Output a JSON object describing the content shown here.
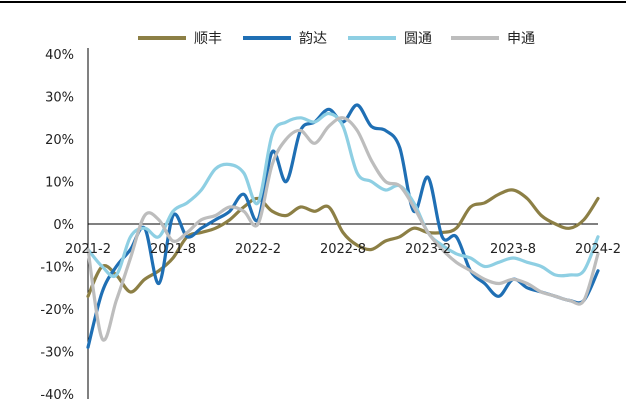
{
  "chart_data": {
    "type": "line",
    "title": "",
    "xlabel": "",
    "ylabel": "",
    "ylim": [
      -40,
      40
    ],
    "yticks": [
      40,
      30,
      20,
      10,
      0,
      -10,
      -20,
      -30,
      -40
    ],
    "ytick_labels": [
      "40%",
      "30%",
      "20%",
      "10%",
      "0%",
      "-10%",
      "-20%",
      "-30%",
      "-40%"
    ],
    "xlim": [
      "2021-02",
      "2024-02"
    ],
    "xticks": [
      "2021-02",
      "2021-08",
      "2022-02",
      "2022-08",
      "2023-02",
      "2023-08",
      "2024-02"
    ],
    "xtick_labels": [
      "2021-2",
      "2021-8",
      "2022-2",
      "2022-8",
      "2023-2",
      "2023-8",
      "2024-2"
    ],
    "grid": false,
    "legend_position": "top",
    "series": [
      {
        "name": "顺丰",
        "color": "#8C7F45",
        "points": [
          [
            "2021-02",
            -17
          ],
          [
            "2021-03",
            -10
          ],
          [
            "2021-04",
            -12
          ],
          [
            "2021-05",
            -16
          ],
          [
            "2021-06",
            -13
          ],
          [
            "2021-07",
            -11
          ],
          [
            "2021-08",
            -8
          ],
          [
            "2021-09",
            -3
          ],
          [
            "2021-10",
            -2
          ],
          [
            "2021-11",
            -1
          ],
          [
            "2021-12",
            1
          ],
          [
            "2022-01",
            4
          ],
          [
            "2022-02",
            6
          ],
          [
            "2022-03",
            3
          ],
          [
            "2022-04",
            2
          ],
          [
            "2022-05",
            4
          ],
          [
            "2022-06",
            3
          ],
          [
            "2022-07",
            4
          ],
          [
            "2022-08",
            -2
          ],
          [
            "2022-09",
            -5
          ],
          [
            "2022-10",
            -6
          ],
          [
            "2022-11",
            -4
          ],
          [
            "2022-12",
            -3
          ],
          [
            "2023-01",
            -1
          ],
          [
            "2023-02",
            -2
          ],
          [
            "2023-03",
            -2
          ],
          [
            "2023-04",
            -1
          ],
          [
            "2023-05",
            4
          ],
          [
            "2023-06",
            5
          ],
          [
            "2023-07",
            7
          ],
          [
            "2023-08",
            8
          ],
          [
            "2023-09",
            6
          ],
          [
            "2023-10",
            2
          ],
          [
            "2023-11",
            0
          ],
          [
            "2023-12",
            -1
          ],
          [
            "2024-01",
            1
          ],
          [
            "2024-02",
            6
          ]
        ]
      },
      {
        "name": "韵达",
        "color": "#1F6FB4",
        "points": [
          [
            "2021-02",
            -29
          ],
          [
            "2021-03",
            -16
          ],
          [
            "2021-04",
            -10
          ],
          [
            "2021-05",
            -6
          ],
          [
            "2021-06",
            -1
          ],
          [
            "2021-07",
            -14
          ],
          [
            "2021-08",
            2
          ],
          [
            "2021-09",
            -3
          ],
          [
            "2021-10",
            -1
          ],
          [
            "2021-11",
            1
          ],
          [
            "2021-12",
            3
          ],
          [
            "2022-01",
            7
          ],
          [
            "2022-02",
            1
          ],
          [
            "2022-03",
            17
          ],
          [
            "2022-04",
            10
          ],
          [
            "2022-05",
            22
          ],
          [
            "2022-06",
            24
          ],
          [
            "2022-07",
            27
          ],
          [
            "2022-08",
            24
          ],
          [
            "2022-09",
            28
          ],
          [
            "2022-10",
            23
          ],
          [
            "2022-11",
            22
          ],
          [
            "2022-12",
            18
          ],
          [
            "2023-01",
            3
          ],
          [
            "2023-02",
            11
          ],
          [
            "2023-03",
            -3
          ],
          [
            "2023-04",
            -3
          ],
          [
            "2023-05",
            -11
          ],
          [
            "2023-06",
            -14
          ],
          [
            "2023-07",
            -17
          ],
          [
            "2023-08",
            -13
          ],
          [
            "2023-09",
            -15
          ],
          [
            "2023-10",
            -16
          ],
          [
            "2023-11",
            -17
          ],
          [
            "2023-12",
            -18
          ],
          [
            "2024-01",
            -18
          ],
          [
            "2024-02",
            -11
          ]
        ]
      },
      {
        "name": "圆通",
        "color": "#8ECFE3",
        "points": [
          [
            "2021-02",
            -6
          ],
          [
            "2021-03",
            -10
          ],
          [
            "2021-04",
            -12
          ],
          [
            "2021-05",
            -3
          ],
          [
            "2021-06",
            -1
          ],
          [
            "2021-07",
            -3
          ],
          [
            "2021-08",
            3
          ],
          [
            "2021-09",
            5
          ],
          [
            "2021-10",
            8
          ],
          [
            "2021-11",
            13
          ],
          [
            "2021-12",
            14
          ],
          [
            "2022-01",
            12
          ],
          [
            "2022-02",
            5
          ],
          [
            "2022-03",
            21
          ],
          [
            "2022-04",
            24
          ],
          [
            "2022-05",
            25
          ],
          [
            "2022-06",
            24
          ],
          [
            "2022-07",
            26
          ],
          [
            "2022-08",
            23
          ],
          [
            "2022-09",
            12
          ],
          [
            "2022-10",
            10
          ],
          [
            "2022-11",
            8
          ],
          [
            "2022-12",
            9
          ],
          [
            "2023-01",
            5
          ],
          [
            "2023-02",
            -2
          ],
          [
            "2023-03",
            -5
          ],
          [
            "2023-04",
            -7
          ],
          [
            "2023-05",
            -8
          ],
          [
            "2023-06",
            -10
          ],
          [
            "2023-07",
            -9
          ],
          [
            "2023-08",
            -8
          ],
          [
            "2023-09",
            -9
          ],
          [
            "2023-10",
            -10
          ],
          [
            "2023-11",
            -12
          ],
          [
            "2023-12",
            -12
          ],
          [
            "2024-01",
            -11
          ],
          [
            "2024-02",
            -3
          ]
        ]
      },
      {
        "name": "申通",
        "color": "#BDBDBD",
        "points": [
          [
            "2021-02",
            -6
          ],
          [
            "2021-03",
            -27
          ],
          [
            "2021-04",
            -18
          ],
          [
            "2021-05",
            -8
          ],
          [
            "2021-06",
            2
          ],
          [
            "2021-07",
            1
          ],
          [
            "2021-08",
            -4
          ],
          [
            "2021-09",
            -2
          ],
          [
            "2021-10",
            1
          ],
          [
            "2021-11",
            2
          ],
          [
            "2021-12",
            4
          ],
          [
            "2022-01",
            3
          ],
          [
            "2022-02",
            0
          ],
          [
            "2022-03",
            14
          ],
          [
            "2022-04",
            20
          ],
          [
            "2022-05",
            22
          ],
          [
            "2022-06",
            19
          ],
          [
            "2022-07",
            23
          ],
          [
            "2022-08",
            25
          ],
          [
            "2022-09",
            22
          ],
          [
            "2022-10",
            15
          ],
          [
            "2022-11",
            10
          ],
          [
            "2022-12",
            9
          ],
          [
            "2023-01",
            4
          ],
          [
            "2023-02",
            -2
          ],
          [
            "2023-03",
            -6
          ],
          [
            "2023-04",
            -9
          ],
          [
            "2023-05",
            -11
          ],
          [
            "2023-06",
            -13
          ],
          [
            "2023-07",
            -14
          ],
          [
            "2023-08",
            -13
          ],
          [
            "2023-09",
            -14
          ],
          [
            "2023-10",
            -16
          ],
          [
            "2023-11",
            -17
          ],
          [
            "2023-12",
            -18
          ],
          [
            "2024-01",
            -18
          ],
          [
            "2024-02",
            -7
          ]
        ]
      }
    ]
  }
}
